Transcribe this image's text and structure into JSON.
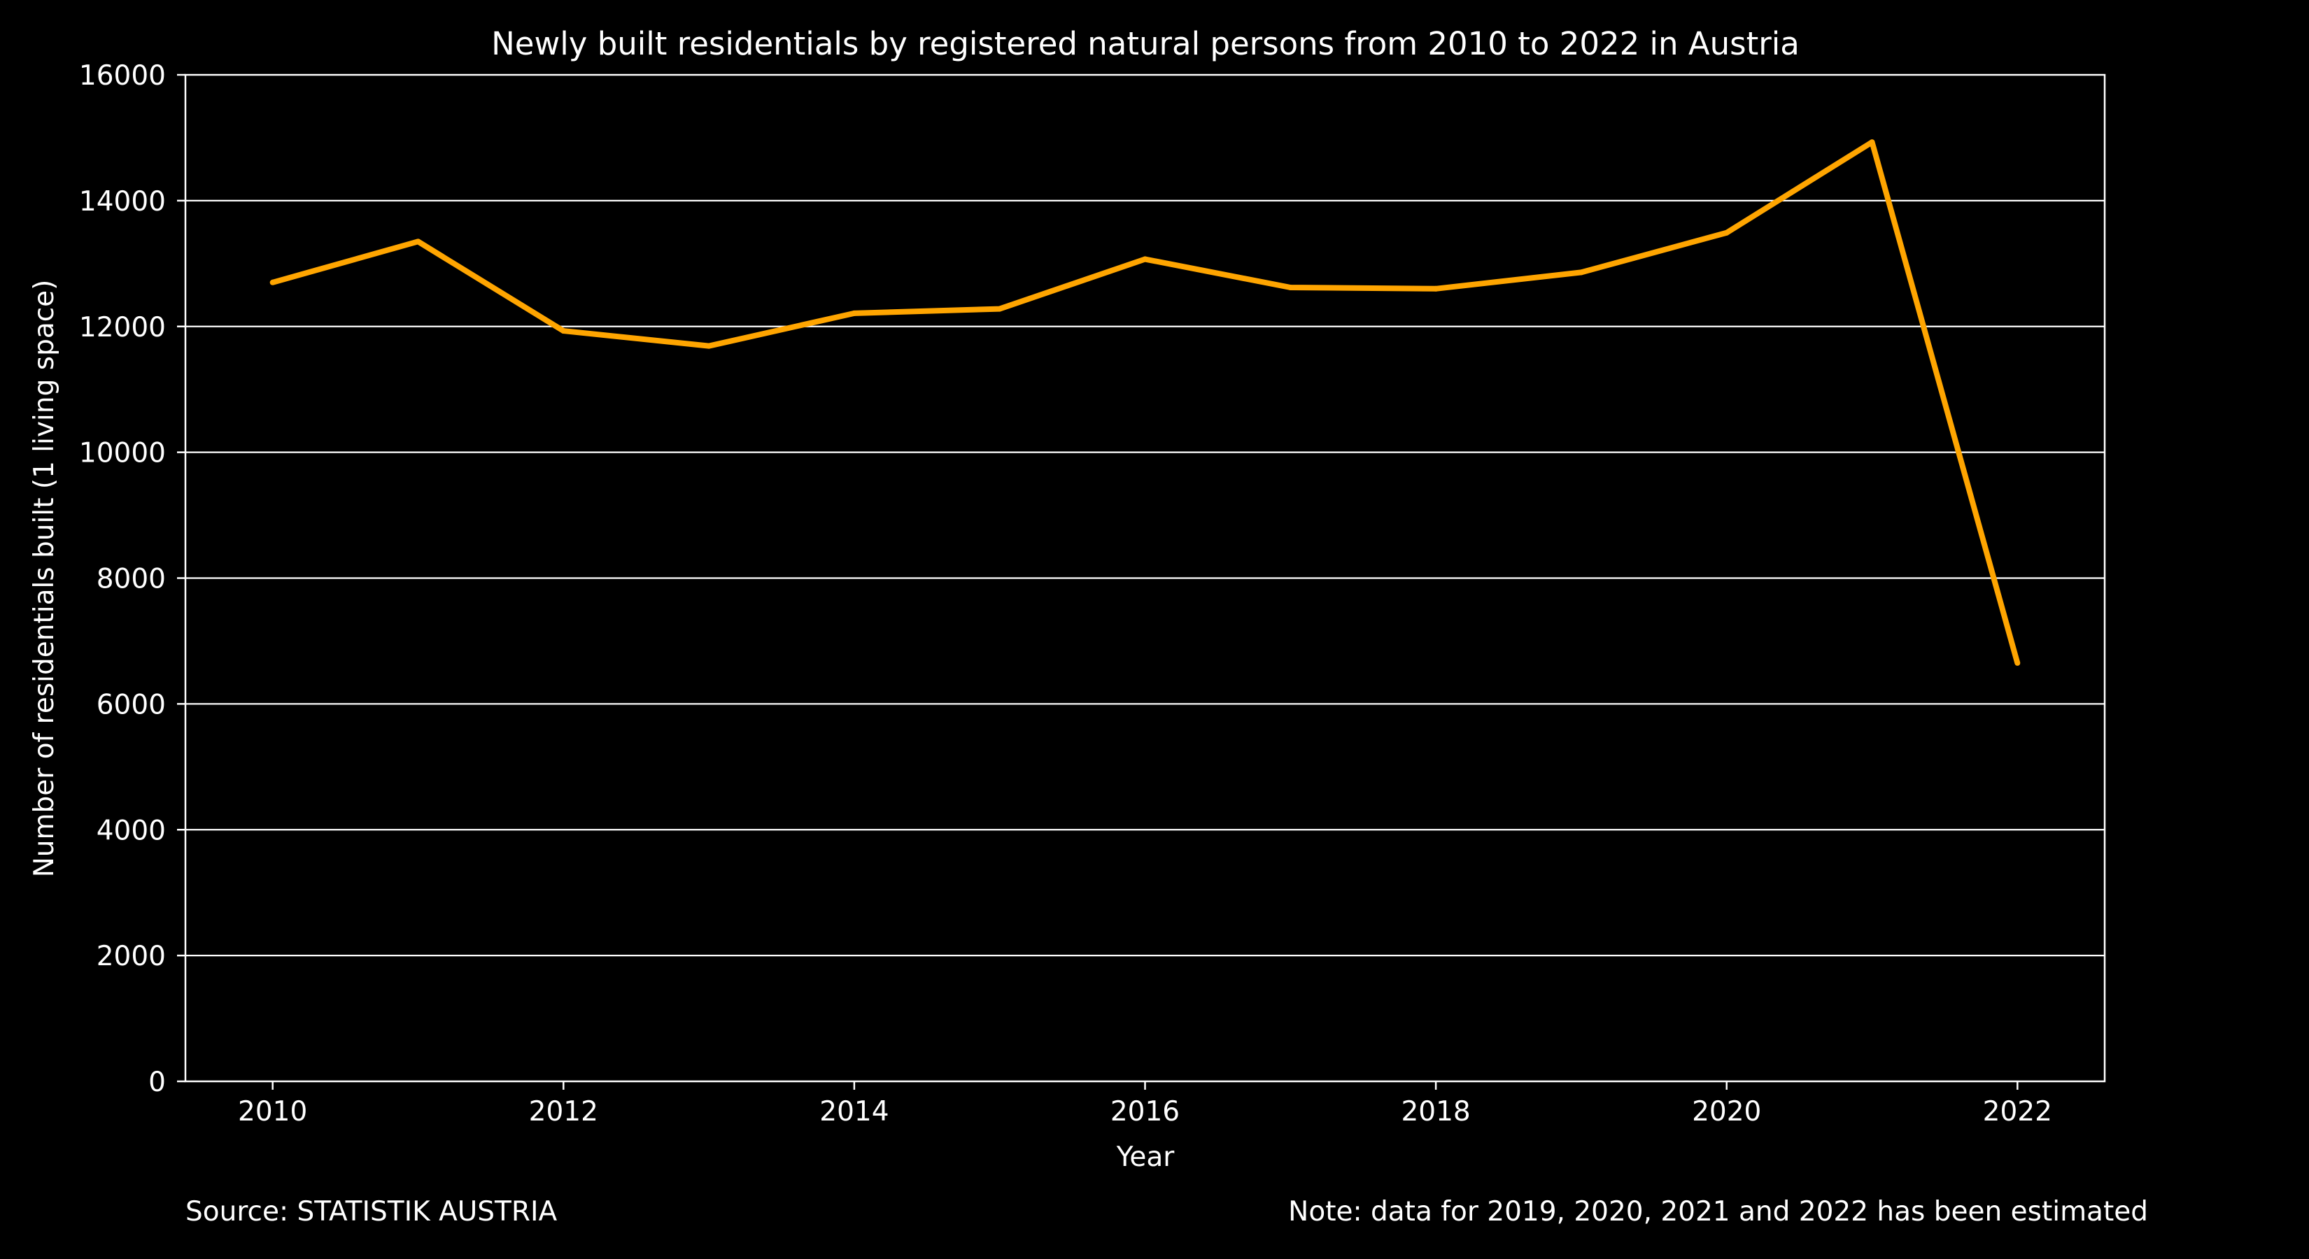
{
  "chart_data": {
    "type": "line",
    "title": "Newly built residentials by registered natural persons from 2010 to 2022 in Austria",
    "xlabel": "Year",
    "ylabel": "Number of residentials built (1 living space)",
    "xlim": [
      2009.4,
      2022.6
    ],
    "ylim": [
      0,
      16000
    ],
    "xticks": [
      2010,
      2012,
      2014,
      2016,
      2018,
      2020,
      2022
    ],
    "yticks": [
      0,
      2000,
      4000,
      6000,
      8000,
      10000,
      12000,
      14000,
      16000
    ],
    "grid": "horizontal",
    "x": [
      2010,
      2011,
      2012,
      2013,
      2014,
      2015,
      2016,
      2017,
      2018,
      2019,
      2020,
      2021,
      2022
    ],
    "series": [
      {
        "values": [
          12700,
          13350,
          11930,
          11690,
          12210,
          12280,
          13070,
          12620,
          12600,
          12860,
          13490,
          14930,
          6650
        ],
        "color": "#ffa500"
      }
    ],
    "source": "Source: STATISTIK AUSTRIA",
    "note": "Note: data for 2019, 2020, 2021 and 2022 has been estimated"
  }
}
